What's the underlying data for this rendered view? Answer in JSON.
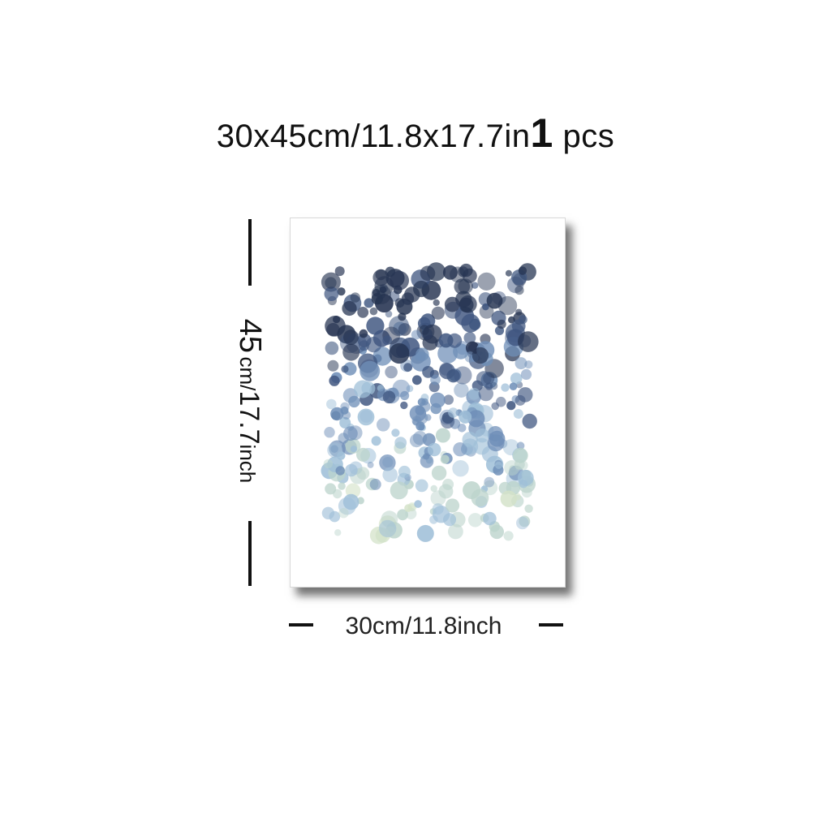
{
  "header": {
    "size_text": "30x45cm/11.8x17.7in",
    "quantity_number": "1",
    "quantity_unit": "pcs"
  },
  "dimensions": {
    "height_number": "45",
    "height_cm_unit": "cm/",
    "height_inch_value": "17.7",
    "height_inch_unit": "inch",
    "width_label": "30cm/11.8inch"
  },
  "artwork": {
    "palette": [
      "#263452",
      "#3f5680",
      "#6f8fb8",
      "#9fbfd8",
      "#bcd4cc",
      "#d3e2c8"
    ]
  }
}
